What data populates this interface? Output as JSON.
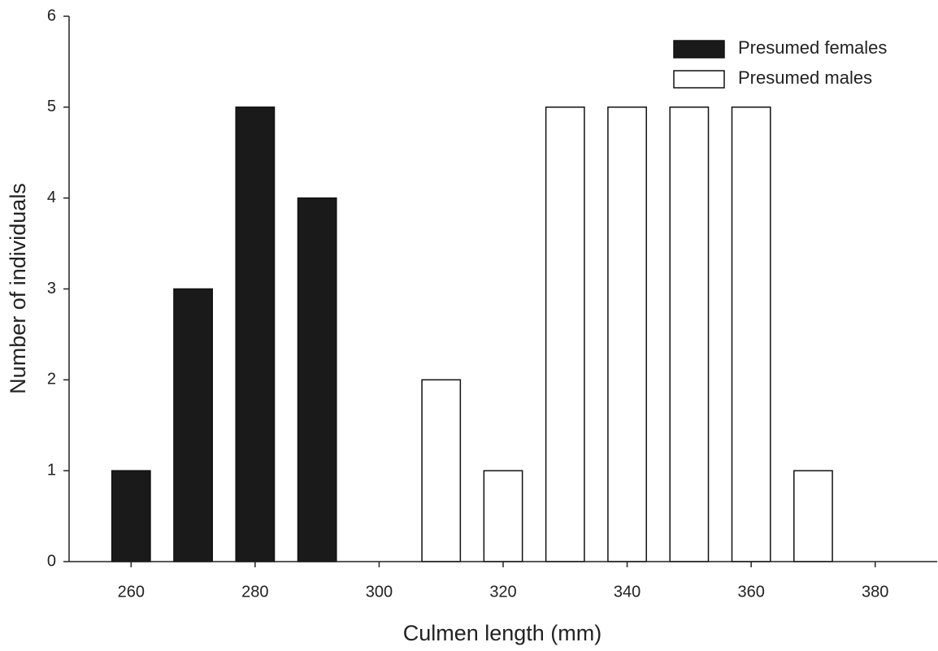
{
  "chart_data": {
    "type": "bar",
    "x_label": "Culmen length (mm)",
    "y_label": "Number of individuals",
    "series": [
      {
        "name": "Presumed females",
        "color": "#1a1a1a",
        "x": [
          260,
          270,
          280,
          290
        ],
        "values": [
          1,
          3,
          5,
          4
        ]
      },
      {
        "name": "Presumed males",
        "color": "#ffffff",
        "x": [
          310,
          320,
          330,
          340,
          350,
          360,
          370
        ],
        "values": [
          2,
          1,
          5,
          5,
          5,
          5,
          1
        ]
      }
    ],
    "xlim": [
      250,
      390
    ],
    "xticks": [
      260,
      280,
      300,
      320,
      340,
      360,
      380
    ],
    "ylim": [
      0,
      6
    ],
    "yticks": [
      0,
      1,
      2,
      3,
      4,
      5,
      6
    ],
    "legend": "upper right",
    "grid": false
  }
}
